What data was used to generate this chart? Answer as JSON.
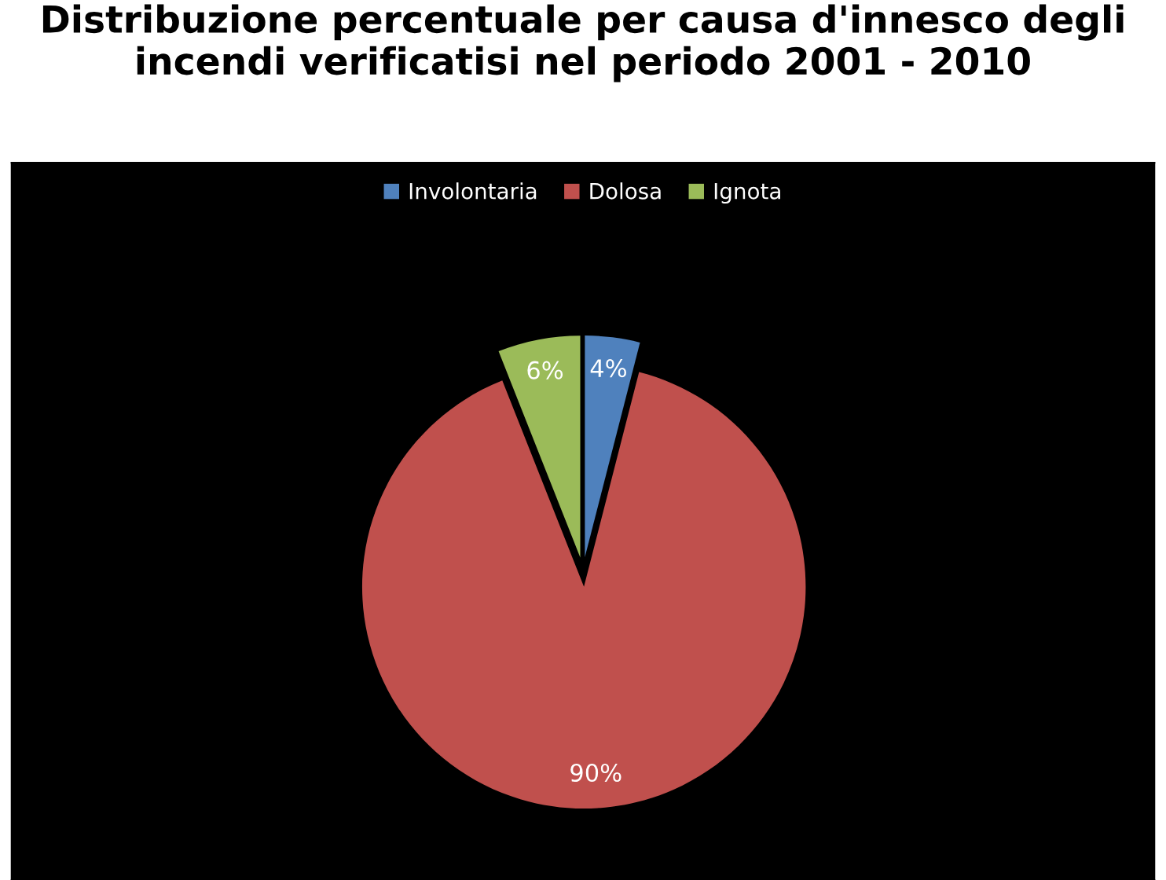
{
  "chart_data": {
    "type": "pie",
    "title": "Distribuzione percentuale per causa d'innesco degli incendi verificatisi nel periodo 2001 - 2010",
    "categories": [
      "Involontaria",
      "Dolosa",
      "Ignota"
    ],
    "values": [
      4,
      90,
      6
    ],
    "colors": [
      "#4f81bd",
      "#c0504d",
      "#9bbb59"
    ],
    "value_labels": [
      "4%",
      "90%",
      "6%"
    ],
    "legend": "top"
  }
}
